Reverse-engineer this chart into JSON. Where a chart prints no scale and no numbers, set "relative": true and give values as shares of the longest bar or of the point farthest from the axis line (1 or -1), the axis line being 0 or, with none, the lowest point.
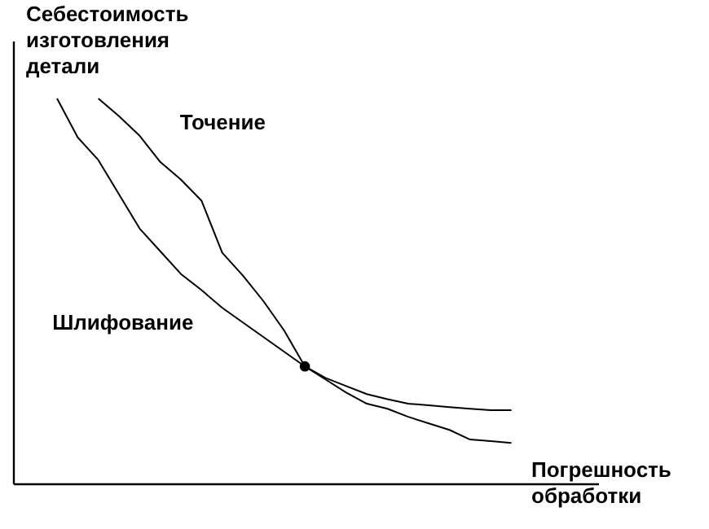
{
  "chart_data": {
    "type": "line",
    "relative": true,
    "xlabel": "Погрешность обработки",
    "ylabel": "Себестоимость изготовления детали",
    "legend": false,
    "grid": false,
    "categories": [
      null,
      null,
      null,
      null,
      null,
      null,
      null,
      null,
      null,
      null,
      null,
      null,
      null,
      null,
      null,
      null,
      null,
      null,
      null,
      null,
      null,
      null,
      null
    ],
    "series": [
      {
        "name": "Точение",
        "color": "#000000",
        "values": [
          null,
          null,
          1.0,
          0.954,
          0.903,
          0.835,
          0.789,
          0.734,
          0.599,
          0.54,
          0.473,
          0.397,
          0.304,
          0.274,
          0.253,
          0.232,
          0.219,
          0.207,
          0.203,
          0.198,
          0.194,
          0.19,
          0.19
        ]
      },
      {
        "name": "Шлифование",
        "color": "#000000",
        "values": [
          1.0,
          0.899,
          0.84,
          0.751,
          0.662,
          0.603,
          0.544,
          0.502,
          0.456,
          0.418,
          0.38,
          0.342,
          0.304,
          0.27,
          0.236,
          0.207,
          0.194,
          0.173,
          0.156,
          0.139,
          0.114,
          0.11,
          0.105
        ]
      }
    ]
  }
}
